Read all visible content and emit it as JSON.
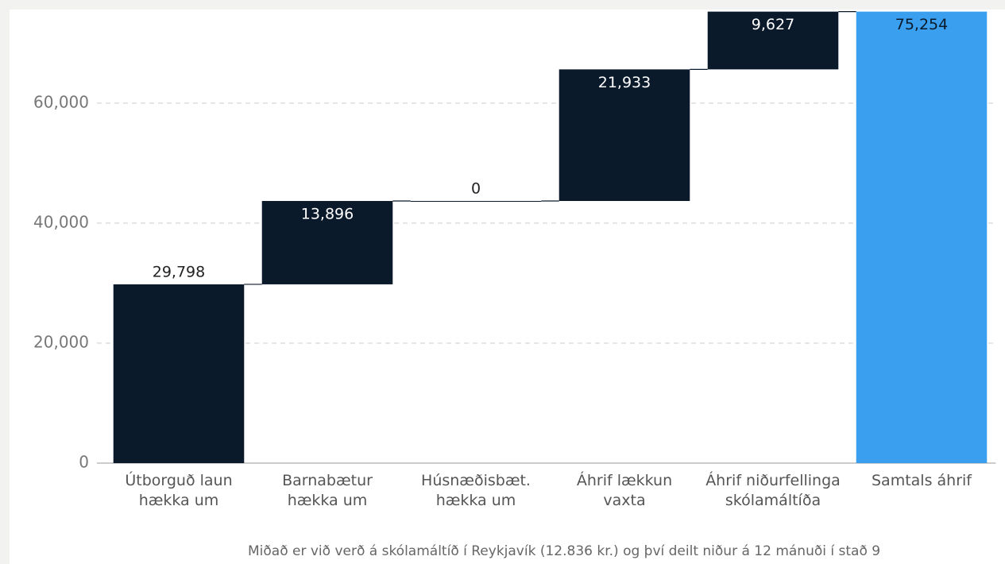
{
  "chart_data": {
    "type": "waterfall",
    "categories": [
      "Útborguð laun hækka um",
      "Barnabætur hækka um",
      "Húsnæðisbæt. hækka um",
      "Áhrif lækkun vaxta",
      "Áhrif niðurfellinga skólamáltíða",
      "Samtals áhrif"
    ],
    "values": [
      29798,
      13896,
      0,
      21933,
      9627,
      75254
    ],
    "value_labels": [
      "29,798",
      "13,896",
      "0",
      "21,933",
      "9,627",
      "75,254"
    ],
    "totals": [
      false,
      false,
      false,
      false,
      false,
      true
    ],
    "colors": [
      "#0b1a2b",
      "#0b1a2b",
      "#0b1a2b",
      "#0b1a2b",
      "#0b1a2b",
      "#3a9fef"
    ],
    "label_position": [
      "above",
      "inside",
      "above",
      "inside",
      "inside",
      "inside"
    ],
    "ylim": [
      0,
      76000
    ],
    "yticks": [
      0,
      {
        "value": 20000,
        "label": "20,000"
      },
      {
        "value": 40000,
        "label": "40,000"
      },
      {
        "value": 60000,
        "label": "60,000"
      }
    ],
    "grid": true,
    "note": "Miðað er við verð á skólamáltíð í Reykjavík (12.836 kr.) og því deilt niður á 12 mánuði í stað 9"
  }
}
